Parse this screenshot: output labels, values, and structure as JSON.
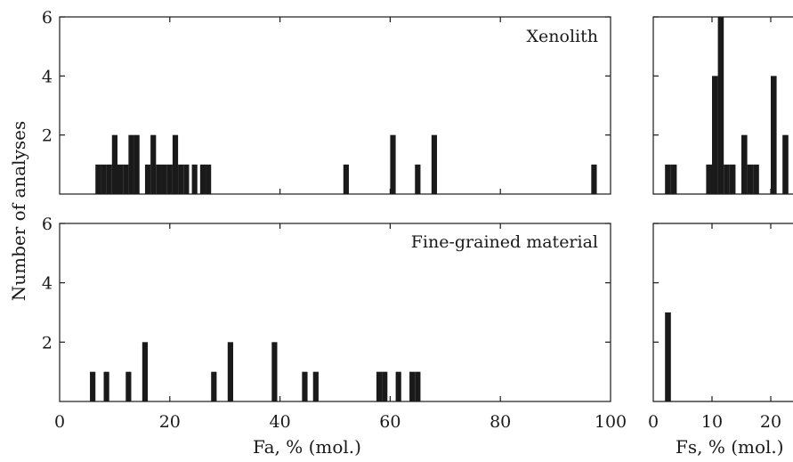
{
  "chart_data": [
    {
      "type": "bar",
      "panel": "fa-xenolith",
      "label": "Xenolith",
      "xlim": [
        0,
        100
      ],
      "ylim": [
        0,
        6
      ],
      "xticks": [
        0,
        20,
        40,
        60,
        80,
        100
      ],
      "yticks": [
        2,
        4,
        6
      ],
      "bin_width": 1,
      "bins": [
        {
          "x": 7,
          "y": 1
        },
        {
          "x": 8,
          "y": 1
        },
        {
          "x": 9,
          "y": 1
        },
        {
          "x": 10,
          "y": 2
        },
        {
          "x": 11,
          "y": 1
        },
        {
          "x": 12,
          "y": 1
        },
        {
          "x": 13,
          "y": 2
        },
        {
          "x": 14,
          "y": 2
        },
        {
          "x": 16,
          "y": 1
        },
        {
          "x": 17,
          "y": 2
        },
        {
          "x": 18,
          "y": 1
        },
        {
          "x": 19,
          "y": 1
        },
        {
          "x": 20,
          "y": 1
        },
        {
          "x": 21,
          "y": 2
        },
        {
          "x": 22,
          "y": 1
        },
        {
          "x": 23,
          "y": 1
        },
        {
          "x": 24.5,
          "y": 1
        },
        {
          "x": 26,
          "y": 1
        },
        {
          "x": 27,
          "y": 1
        },
        {
          "x": 52,
          "y": 1
        },
        {
          "x": 60.5,
          "y": 2
        },
        {
          "x": 65,
          "y": 1
        },
        {
          "x": 68,
          "y": 2
        },
        {
          "x": 97,
          "y": 1
        }
      ]
    },
    {
      "type": "bar",
      "panel": "fa-fine-grained",
      "label": "Fine-grained material",
      "xlim": [
        0,
        100
      ],
      "ylim": [
        0,
        6
      ],
      "xticks": [
        0,
        20,
        40,
        60,
        80,
        100
      ],
      "yticks": [
        2,
        4,
        6
      ],
      "bin_width": 1,
      "bins": [
        {
          "x": 6,
          "y": 1
        },
        {
          "x": 8.5,
          "y": 1
        },
        {
          "x": 12.5,
          "y": 1
        },
        {
          "x": 15.5,
          "y": 2
        },
        {
          "x": 28,
          "y": 1
        },
        {
          "x": 31,
          "y": 2
        },
        {
          "x": 39,
          "y": 2
        },
        {
          "x": 44.5,
          "y": 1
        },
        {
          "x": 46.5,
          "y": 1
        },
        {
          "x": 58,
          "y": 1
        },
        {
          "x": 59,
          "y": 1
        },
        {
          "x": 61.5,
          "y": 1
        },
        {
          "x": 64,
          "y": 1
        },
        {
          "x": 65,
          "y": 1
        }
      ]
    },
    {
      "type": "bar",
      "panel": "fs-xenolith",
      "xlim": [
        0,
        24
      ],
      "ylim": [
        0,
        6
      ],
      "xticks": [
        0,
        10,
        20
      ],
      "yticks": [
        2,
        4,
        6
      ],
      "bin_width": 1,
      "bins": [
        {
          "x": 2.5,
          "y": 1
        },
        {
          "x": 3.5,
          "y": 1
        },
        {
          "x": 9.5,
          "y": 1
        },
        {
          "x": 10.5,
          "y": 4
        },
        {
          "x": 11.5,
          "y": 6
        },
        {
          "x": 12.5,
          "y": 1
        },
        {
          "x": 13.5,
          "y": 1
        },
        {
          "x": 15.5,
          "y": 2
        },
        {
          "x": 16.5,
          "y": 1
        },
        {
          "x": 17.5,
          "y": 1
        },
        {
          "x": 20.5,
          "y": 4
        },
        {
          "x": 22.5,
          "y": 2
        }
      ]
    },
    {
      "type": "bar",
      "panel": "fs-fine-grained",
      "xlim": [
        0,
        24
      ],
      "ylim": [
        0,
        6
      ],
      "xticks": [
        0,
        10,
        20
      ],
      "yticks": [
        2,
        4,
        6
      ],
      "bin_width": 1,
      "bins": [
        {
          "x": 2.5,
          "y": 3
        }
      ]
    }
  ],
  "ylabel": "Number of analyses",
  "xlabel_fa": "Fa, % (mol.)",
  "xlabel_fs": "Fs, % (mol.)"
}
